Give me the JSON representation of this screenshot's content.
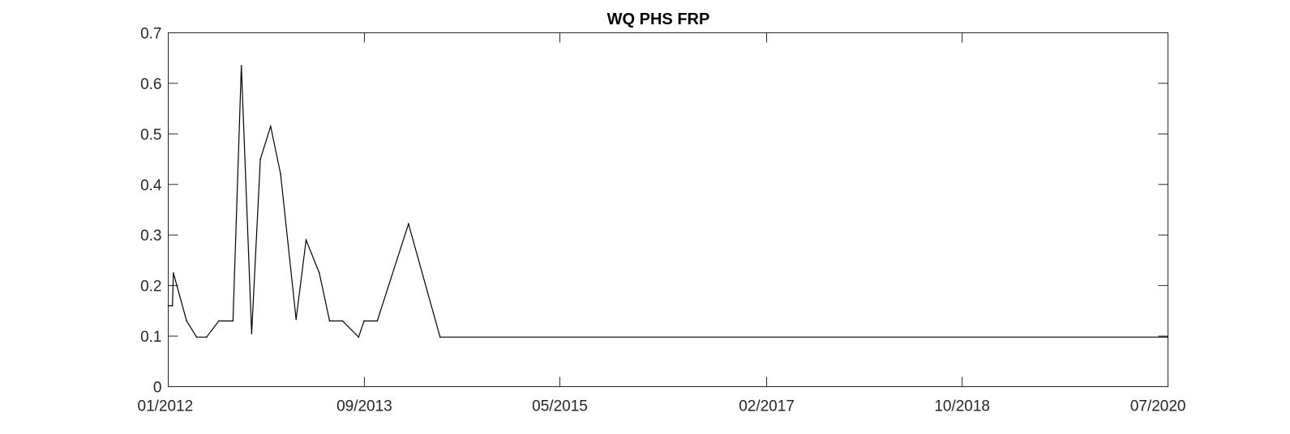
{
  "chart_data": {
    "type": "line",
    "title": "WQ PHS FRP",
    "xlabel": "",
    "ylabel": "",
    "grid": false,
    "xlim": [
      "2012-01",
      "2020-07"
    ],
    "ylim": [
      0,
      0.7
    ],
    "x_ticks": [
      "2012-01",
      "2013-09",
      "2015-05",
      "2017-02",
      "2018-10",
      "2020-07"
    ],
    "x_tick_labels": [
      "01/2012",
      "09/2013",
      "05/2015",
      "02/2017",
      "10/2018",
      "07/2020"
    ],
    "y_ticks": [
      0,
      0.1,
      0.2,
      0.3,
      0.4,
      0.5,
      0.6,
      0.7
    ],
    "y_tick_labels": [
      "0",
      "0.1",
      "0.2",
      "0.3",
      "0.4",
      "0.5",
      "0.6",
      "0.7"
    ],
    "line_color": "#000000",
    "series": [
      {
        "points": [
          {
            "x": "2012-01-01",
            "y": 0.16
          },
          {
            "x": "2012-01-14",
            "y": 0.16
          },
          {
            "x": "2012-01-17",
            "y": 0.225
          },
          {
            "x": "2012-02-27",
            "y": 0.13
          },
          {
            "x": "2012-03-29",
            "y": 0.098
          },
          {
            "x": "2012-04-29",
            "y": 0.098
          },
          {
            "x": "2012-06-06",
            "y": 0.13
          },
          {
            "x": "2012-07-20",
            "y": 0.13
          },
          {
            "x": "2012-08-15",
            "y": 0.635
          },
          {
            "x": "2012-09-16",
            "y": 0.105
          },
          {
            "x": "2012-10-13",
            "y": 0.45
          },
          {
            "x": "2012-11-14",
            "y": 0.515
          },
          {
            "x": "2012-12-15",
            "y": 0.42
          },
          {
            "x": "2013-02-01",
            "y": 0.133
          },
          {
            "x": "2013-03-04",
            "y": 0.29
          },
          {
            "x": "2013-04-14",
            "y": 0.225
          },
          {
            "x": "2013-05-16",
            "y": 0.13
          },
          {
            "x": "2013-06-25",
            "y": 0.13
          },
          {
            "x": "2013-08-14",
            "y": 0.098
          },
          {
            "x": "2013-08-31",
            "y": 0.13
          },
          {
            "x": "2013-10-11",
            "y": 0.13
          },
          {
            "x": "2014-01-16",
            "y": 0.322
          },
          {
            "x": "2014-04-24",
            "y": 0.098
          },
          {
            "x": "2020-07-01",
            "y": 0.098
          }
        ]
      }
    ]
  }
}
